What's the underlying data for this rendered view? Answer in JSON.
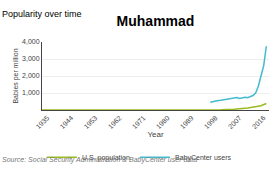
{
  "chart_data": {
    "type": "line",
    "title": "Muhammad",
    "subtitle": "Popularity over time",
    "x_label": "Year",
    "y_label": "Babies per million",
    "annotations": [
      "Source: Social Security Administration & BabyCenter user data"
    ],
    "series": [
      {
        "name": "U.S. population",
        "color": "#99bb22",
        "x": [
          1933,
          1935,
          1940,
          1945,
          1950,
          1955,
          1960,
          1965,
          1970,
          1975,
          1980,
          1985,
          1990,
          1995,
          2000,
          2005,
          2010,
          2015,
          2017
        ],
        "values": [
          0,
          0,
          0,
          0,
          0,
          0,
          0,
          0,
          0,
          2,
          4,
          6,
          8,
          12,
          20,
          50,
          120,
          250,
          380
        ]
      },
      {
        "name": "BabyCenter users",
        "color": "#44bbcc",
        "x": [
          1996,
          1997,
          1998,
          1999,
          2000,
          2001,
          2002,
          2003,
          2004,
          2005,
          2006,
          2007,
          2008,
          2009,
          2010,
          2011,
          2012,
          2013,
          2014,
          2015,
          2016,
          2017
        ],
        "values": [
          450,
          500,
          540,
          560,
          580,
          600,
          640,
          660,
          680,
          700,
          730,
          680,
          720,
          750,
          720,
          780,
          850,
          1000,
          1400,
          2000,
          2600,
          3750
        ]
      }
    ],
    "xlim": [
      1933,
      2018
    ],
    "xticks": [
      1935,
      1944,
      1953,
      1962,
      1971,
      1980,
      1989,
      1998,
      2007,
      2016
    ],
    "ylim": [
      0,
      4000
    ],
    "yticks": [
      {
        "value": 1000,
        "label": "1,000"
      },
      {
        "value": 2000,
        "label": "2,000"
      },
      {
        "value": 3000,
        "label": "3,000"
      },
      {
        "value": 4000,
        "label": "4,000"
      }
    ],
    "grid": "y",
    "legend": "lower left"
  }
}
